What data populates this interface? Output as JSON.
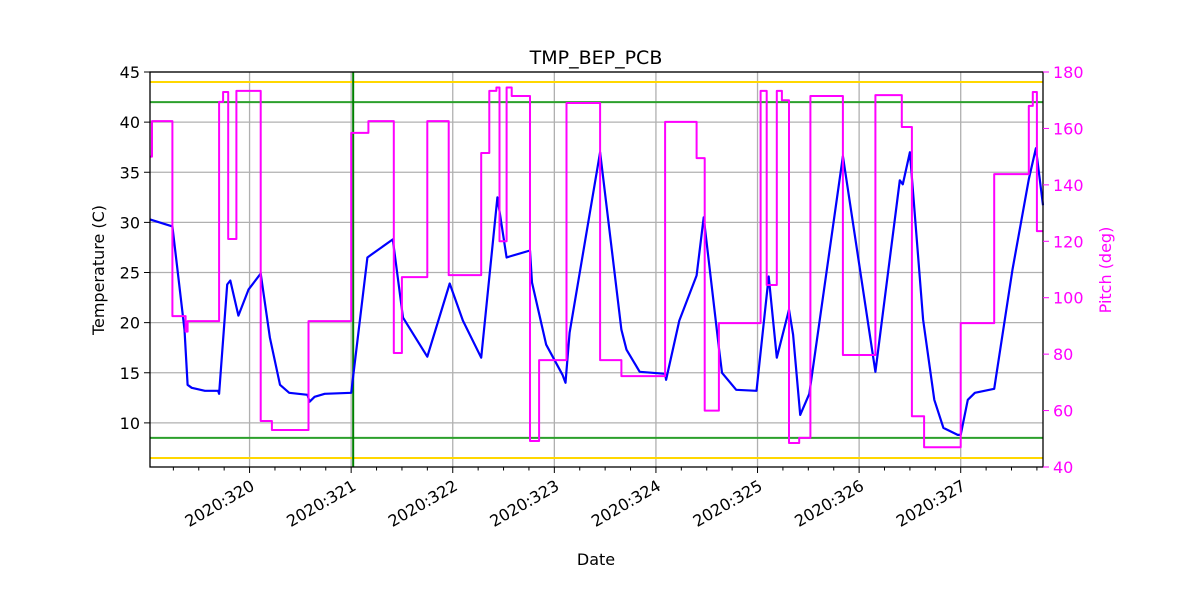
{
  "chart_data": {
    "type": "line",
    "title": "TMP_BEP_PCB",
    "xlabel": "Date",
    "ylabel": "Temperature (C)",
    "y2label": "Pitch (deg)",
    "xlim": [
      319.02,
      327.81
    ],
    "ylim": [
      5.6,
      45
    ],
    "y2lim": [
      40,
      180
    ],
    "grid": true,
    "x_ticks": [
      320,
      321,
      322,
      323,
      324,
      325,
      326,
      327
    ],
    "x_tick_labels": [
      "2020:320",
      "2020:321",
      "2020:322",
      "2020:323",
      "2020:324",
      "2020:325",
      "2020:326",
      "2020:327"
    ],
    "y_ticks": [
      10,
      15,
      20,
      25,
      30,
      35,
      40,
      45
    ],
    "y2_ticks": [
      40,
      60,
      80,
      100,
      120,
      140,
      160,
      180
    ],
    "colors": {
      "temperature": "#0000ff",
      "pitch": "#ff00ff",
      "caution": "#ffd700",
      "planning": "#2ca02c",
      "vline": "#008000",
      "grid": "#b0b0b0",
      "y2axis": "#ff00ff"
    },
    "limit_lines": [
      {
        "kind": "caution",
        "value": 44
      },
      {
        "kind": "planning",
        "value": 42
      },
      {
        "kind": "planning",
        "value": 8.5
      },
      {
        "kind": "caution",
        "value": 6.5
      }
    ],
    "vertical_line": 321.02,
    "series": [
      {
        "axis": "left",
        "color": "#0000ff",
        "x": [
          319.02,
          319.24,
          319.36,
          319.39,
          319.43,
          319.56,
          319.69,
          319.7,
          319.78,
          319.81,
          319.89,
          319.99,
          320.11,
          320.2,
          320.3,
          320.39,
          320.57,
          320.59,
          320.64,
          320.74,
          321.0,
          321.16,
          321.2,
          321.41,
          321.51,
          321.75,
          321.97,
          322.1,
          322.28,
          322.44,
          322.53,
          322.56,
          322.76,
          322.78,
          322.92,
          323.08,
          323.11,
          323.15,
          323.45,
          323.66,
          323.71,
          323.84,
          324.09,
          324.1,
          324.23,
          324.4,
          324.47,
          324.62,
          324.65,
          324.79,
          324.99,
          325.11,
          325.19,
          325.31,
          325.35,
          325.42,
          325.51,
          325.84,
          326.16,
          326.4,
          326.43,
          326.5,
          326.63,
          326.74,
          326.83,
          326.97,
          327.0,
          327.07,
          327.14,
          327.33,
          327.51,
          327.67,
          327.74,
          327.81
        ],
        "y": [
          30.3,
          29.6,
          19.3,
          13.8,
          13.5,
          13.2,
          13.2,
          12.9,
          23.8,
          24.2,
          20.7,
          23.3,
          24.9,
          18.5,
          13.8,
          13.0,
          12.8,
          12.1,
          12.6,
          12.9,
          13.0,
          26.5,
          26.8,
          28.3,
          20.5,
          16.6,
          23.9,
          20.2,
          16.5,
          32.5,
          26.5,
          26.6,
          27.2,
          24.0,
          17.8,
          14.8,
          14.0,
          19.0,
          37.0,
          19.3,
          17.3,
          15.1,
          14.9,
          14.3,
          20.2,
          24.7,
          30.5,
          17.5,
          15.0,
          13.3,
          13.2,
          24.6,
          16.5,
          21.3,
          18.8,
          10.8,
          12.9,
          36.6,
          15.1,
          34.2,
          33.8,
          37.0,
          20.3,
          12.3,
          9.5,
          8.8,
          8.8,
          12.3,
          13.0,
          13.4,
          25.3,
          34.3,
          37.4,
          31.7
        ]
      },
      {
        "axis": "right",
        "color": "#ff00ff",
        "step": "post",
        "x": [
          319.02,
          319.04,
          319.24,
          319.37,
          319.39,
          319.7,
          319.74,
          319.79,
          319.87,
          320.11,
          320.22,
          320.58,
          321.0,
          321.17,
          321.42,
          321.5,
          321.75,
          321.96,
          322.28,
          322.36,
          322.43,
          322.46,
          322.53,
          322.58,
          322.76,
          322.85,
          323.12,
          323.45,
          323.66,
          324.09,
          324.4,
          324.48,
          324.62,
          325.03,
          325.09,
          325.19,
          325.24,
          325.31,
          325.41,
          325.52,
          325.84,
          326.16,
          326.42,
          326.52,
          326.64,
          327.0,
          327.33,
          327.67,
          327.71,
          327.75,
          327.81
        ],
        "y": [
          150,
          162.6,
          93.5,
          88,
          91.7,
          169.4,
          172.9,
          120.8,
          173.3,
          56.3,
          53.1,
          91.7,
          158.4,
          162.6,
          80.4,
          107.3,
          162.6,
          108,
          151.3,
          173.3,
          174.5,
          120,
          174.5,
          171.5,
          49.2,
          77.9,
          169,
          77.9,
          72.2,
          162.3,
          149.5,
          60,
          91,
          173.3,
          104.5,
          173.3,
          170,
          48.5,
          50.3,
          171.5,
          79.7,
          171.8,
          160.5,
          58,
          47,
          91,
          143.8,
          168,
          172.9,
          123.6,
          123.6
        ]
      }
    ]
  }
}
